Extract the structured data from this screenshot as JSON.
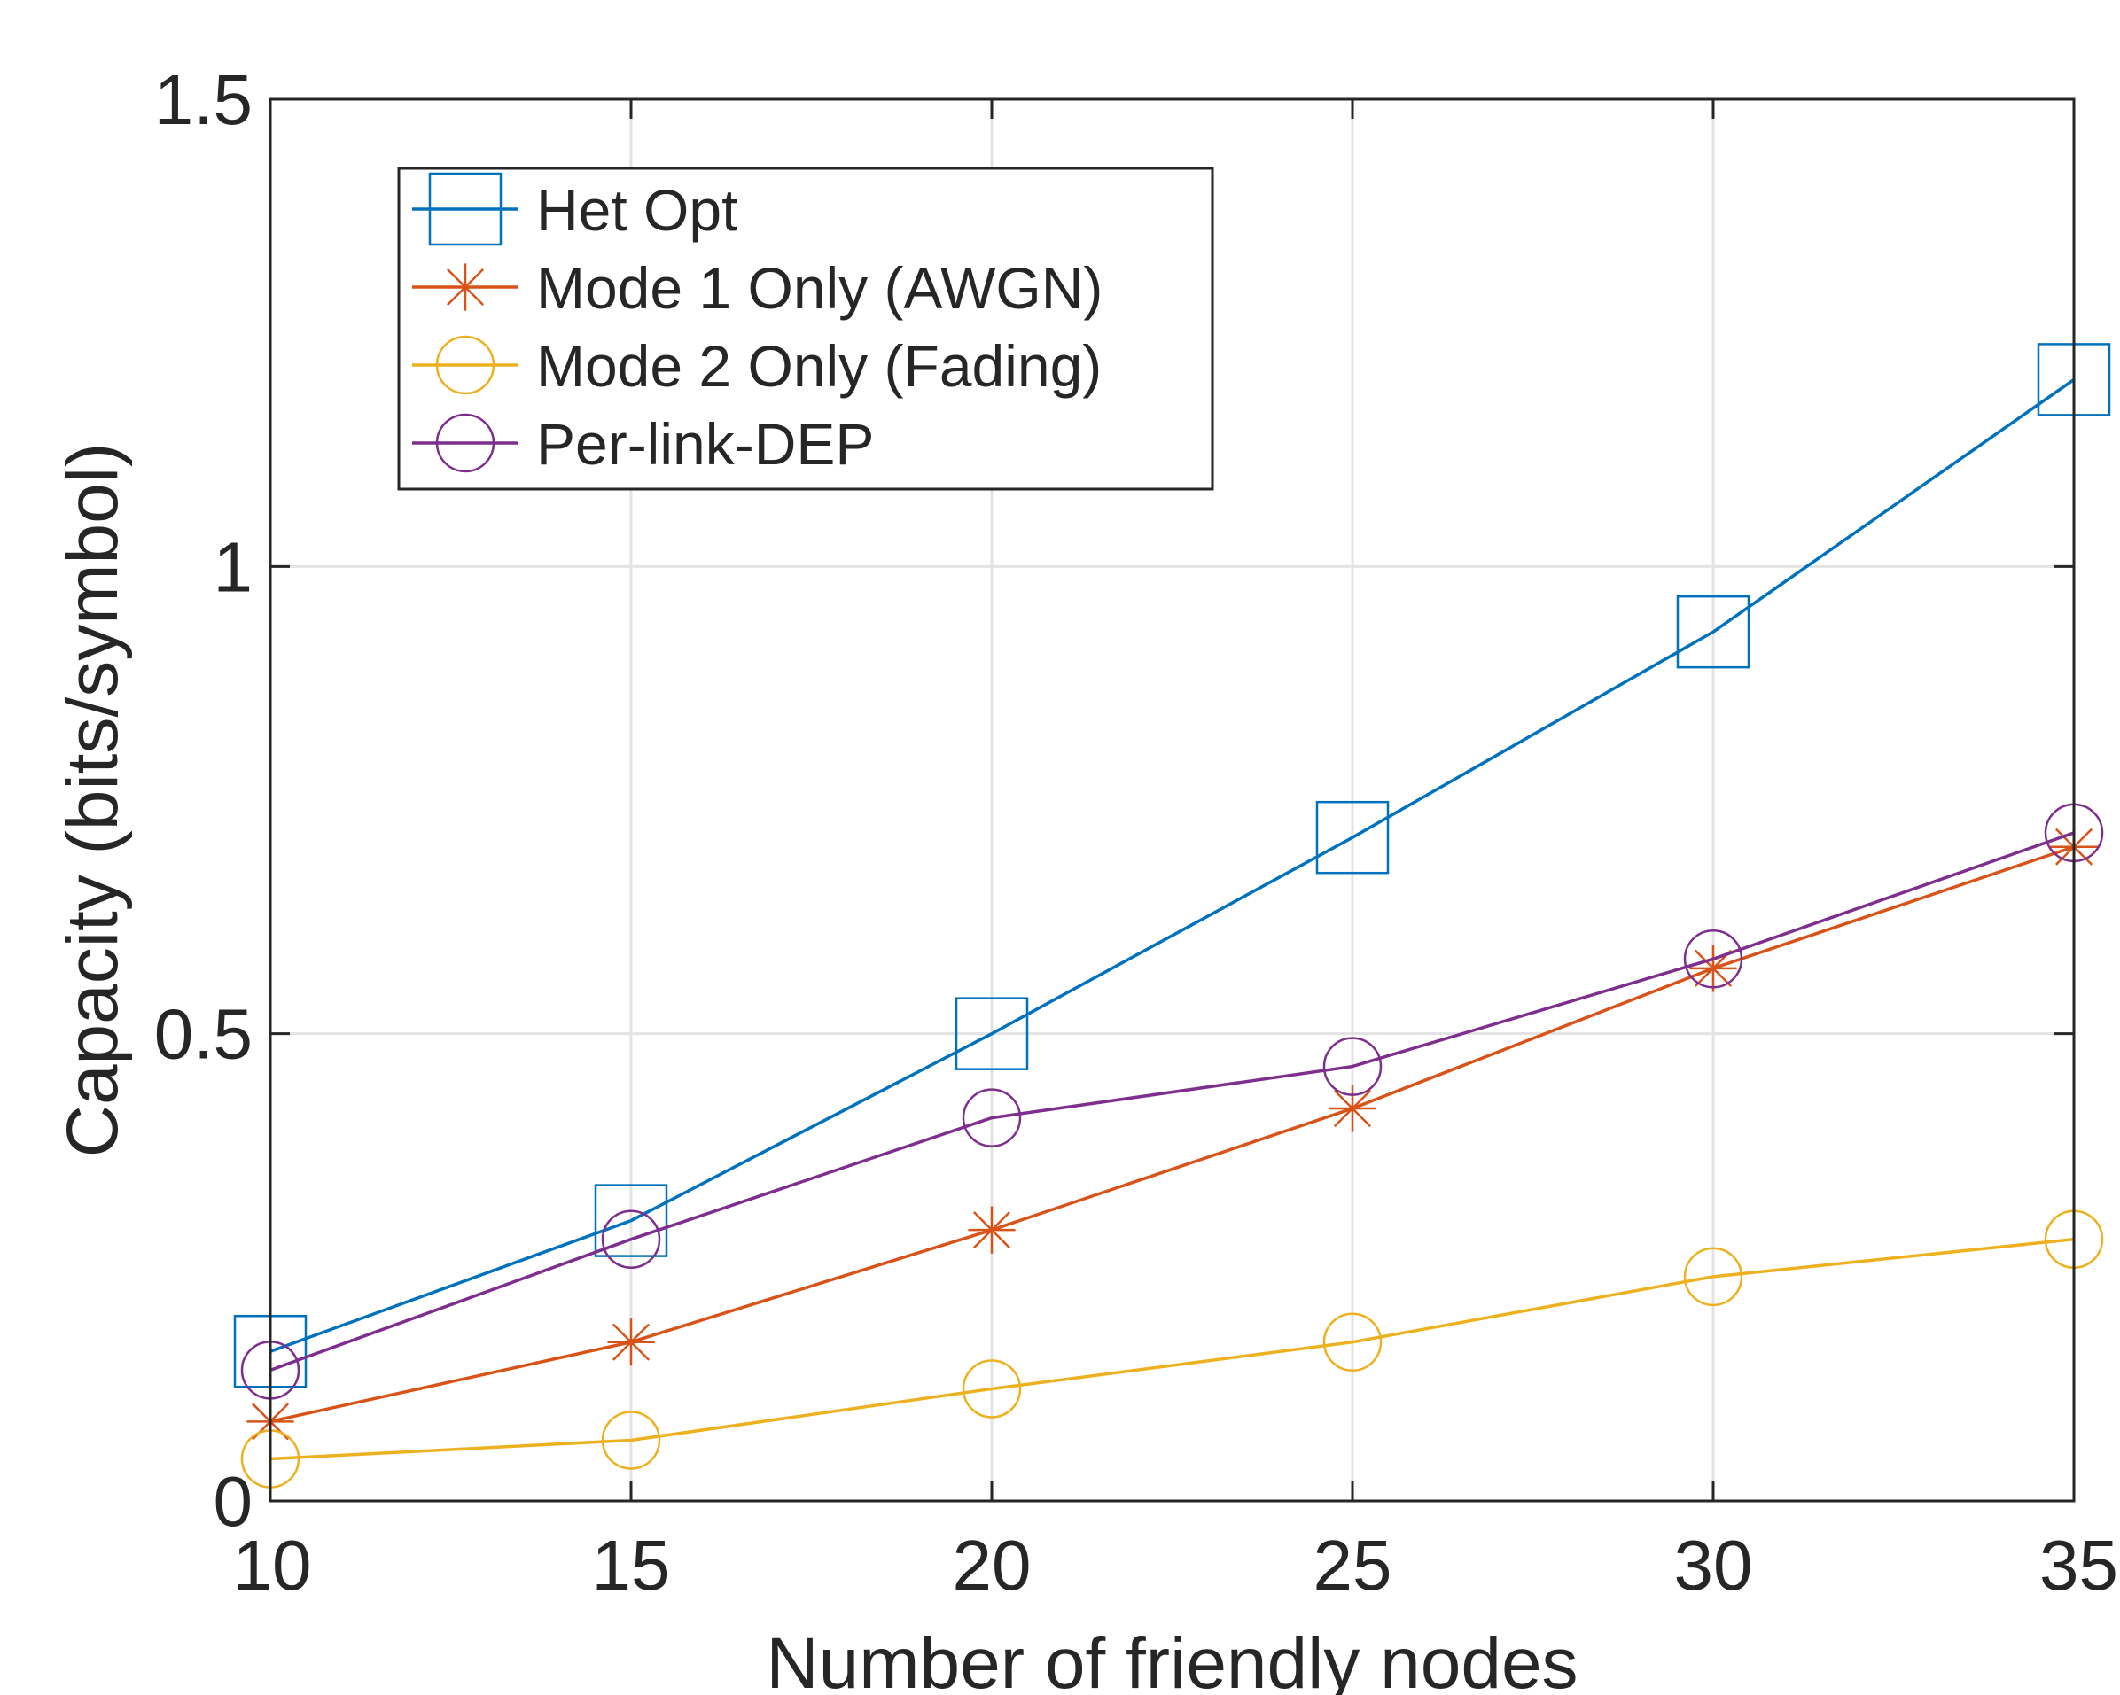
{
  "chart_data": {
    "type": "line",
    "title": "",
    "xlabel": "Number of friendly nodes",
    "ylabel": "Capacity (bits/symbol)",
    "x": [
      10,
      15,
      20,
      25,
      30,
      35
    ],
    "xlim": [
      10,
      35
    ],
    "ylim": [
      0,
      1.5
    ],
    "xticks": [
      10,
      15,
      20,
      25,
      30,
      35
    ],
    "yticks": [
      0,
      0.5,
      1,
      1.5
    ],
    "xtick_labels": [
      "10",
      "15",
      "20",
      "25",
      "30",
      "35"
    ],
    "ytick_labels": [
      "0",
      "0.5",
      "1",
      "1.5"
    ],
    "grid": true,
    "legend_position": "top-left",
    "series": [
      {
        "name": "Het Opt",
        "marker": "square",
        "color": "#0072BD",
        "values": [
          0.16,
          0.3,
          0.5,
          0.71,
          0.93,
          1.2
        ]
      },
      {
        "name": "Mode 1 Only (AWGN)",
        "marker": "asterisk",
        "color": "#D95319",
        "values": [
          0.085,
          0.17,
          0.29,
          0.42,
          0.57,
          0.7
        ]
      },
      {
        "name": "Mode 2 Only (Fading)",
        "marker": "circle",
        "color": "#EDB120",
        "values": [
          0.045,
          0.065,
          0.12,
          0.17,
          0.24,
          0.28
        ]
      },
      {
        "name": "Per-link-DEP",
        "marker": "circle",
        "color": "#7E2F8E",
        "values": [
          0.14,
          0.28,
          0.41,
          0.465,
          0.58,
          0.715
        ]
      }
    ]
  }
}
